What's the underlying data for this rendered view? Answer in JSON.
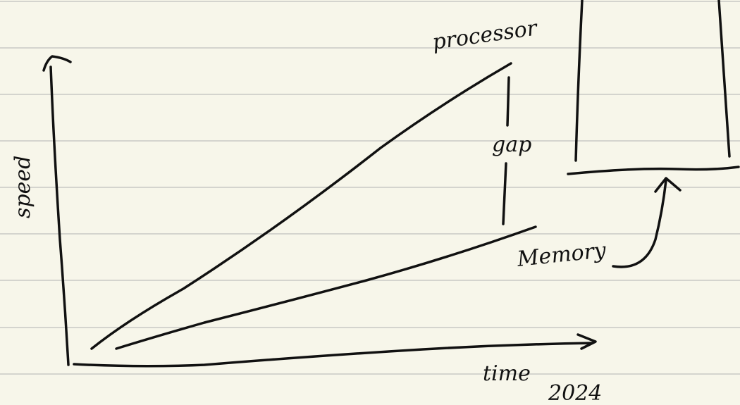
{
  "labels": {
    "processor": "processor",
    "speed": "speed",
    "gap": "gap",
    "memory": "Memory",
    "time": "time",
    "year": "2024"
  }
}
